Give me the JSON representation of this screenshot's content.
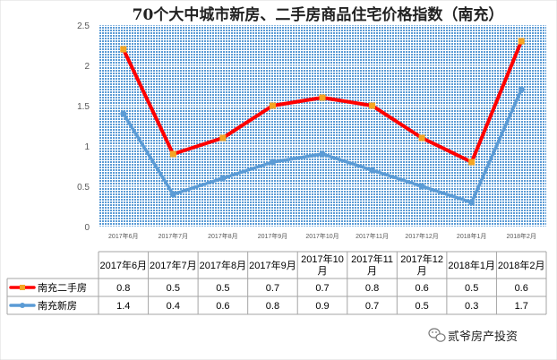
{
  "chart_data": {
    "type": "line",
    "title": "70个大中城市新房、二手房商品住宅价格指数（南充）",
    "categories": [
      "2017年6月",
      "2017年7月",
      "2017年8月",
      "2017年9月",
      "2017年10月",
      "2017年11月",
      "2017年12月",
      "2018年1月",
      "2018年2月"
    ],
    "table_categories": [
      "2017年6月",
      "2017年7月",
      "2017年8月",
      "2017年9月",
      "2017年10\n月",
      "2017年11\n月",
      "2017年12\n月",
      "2018年1月",
      "2018年2月"
    ],
    "ylim": [
      0,
      2.5
    ],
    "yticks": [
      0,
      0.5,
      1,
      1.5,
      2,
      2.5
    ],
    "ytick_labels": [
      "0",
      "0.5",
      "1",
      "1.5",
      "2",
      "2.5"
    ],
    "plot_points": {
      "series0": [
        2.2,
        0.9,
        1.1,
        1.5,
        1.6,
        1.5,
        1.1,
        0.8,
        2.3
      ],
      "series1": [
        1.4,
        0.4,
        0.6,
        0.8,
        0.9,
        0.7,
        0.5,
        0.3,
        1.7
      ]
    },
    "series": [
      {
        "name": "南充二手房",
        "values": [
          "0.8",
          "0.5",
          "0.5",
          "0.7",
          "0.7",
          "0.8",
          "0.6",
          "0.5",
          "0.6"
        ],
        "color": "#ff0000",
        "marker_color": "#f5a623"
      },
      {
        "name": "南充新房",
        "values": [
          "1.4",
          "0.4",
          "0.6",
          "0.8",
          "0.9",
          "0.7",
          "0.5",
          "0.3",
          "1.7"
        ],
        "color": "#5b9bd5",
        "marker_color": "#5b9bd5"
      }
    ],
    "plot_background": "#5b9bd5",
    "grid": true
  },
  "footer": {
    "brand": "贰爷房产投资"
  }
}
